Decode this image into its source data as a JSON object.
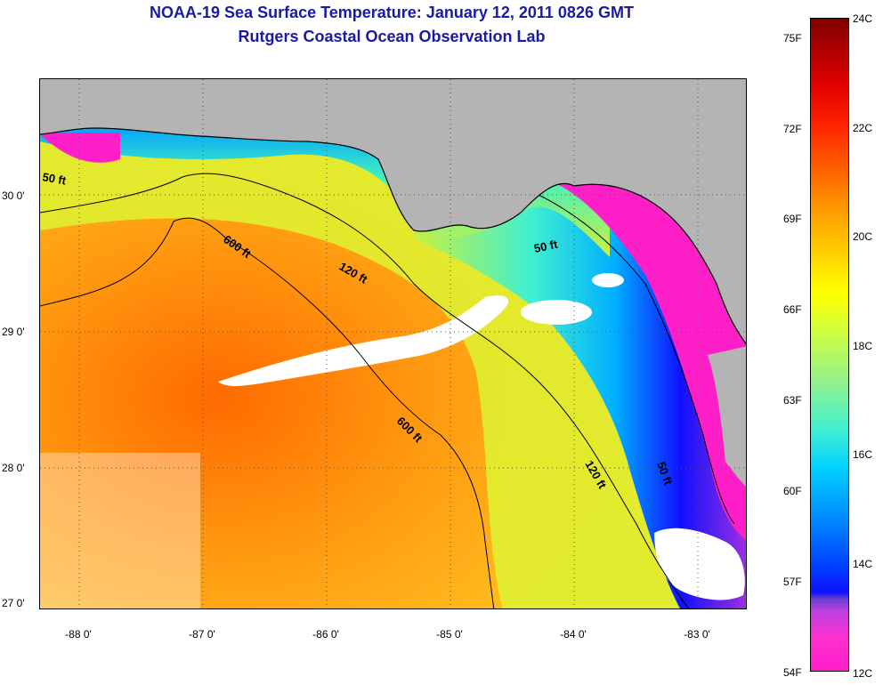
{
  "header": {
    "title": "NOAA-19 Sea Surface Temperature:  January 12, 2011 0826 GMT",
    "subtitle": "Rutgers Coastal Ocean Observation Lab"
  },
  "map": {
    "longitude_labels": [
      "-88 0'",
      "-87 0'",
      "-86 0'",
      "-85 0'",
      "-84 0'",
      "-83 0'"
    ],
    "latitude_labels": [
      "30 0'",
      "29 0'",
      "28 0'",
      "27 0'"
    ],
    "depth_contour_labels": [
      "50 ft",
      "600 ft",
      "120 ft",
      "50 ft",
      "600 ft",
      "120 ft",
      "50 ft"
    ]
  },
  "colorbar": {
    "fahrenheit_labels": [
      "75F",
      "72F",
      "69F",
      "66F",
      "63F",
      "60F",
      "57F",
      "54F"
    ],
    "celsius_labels": [
      "24C",
      "22C",
      "20C",
      "18C",
      "16C",
      "14C",
      "12C"
    ]
  },
  "colors": {
    "land": "#b4b4b4",
    "cloud": "#ffffff",
    "title": "#1a1aa6",
    "cold": "#ff1fc8",
    "warm": "#ff7a00"
  }
}
